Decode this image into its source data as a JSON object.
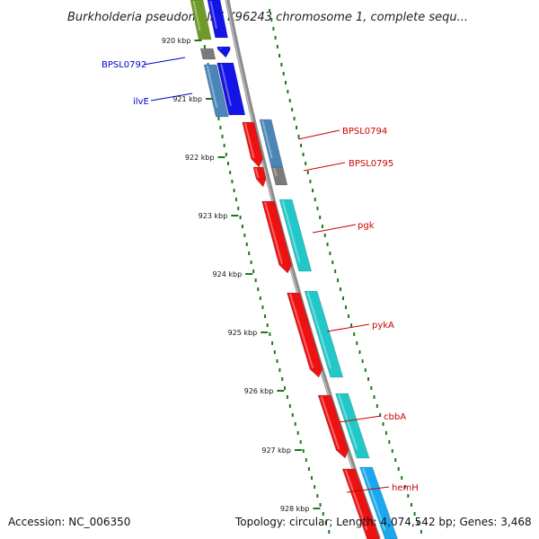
{
  "title": "Burkholderia pseudomallei K96243 chromosome 1, complete sequ...",
  "footer": {
    "accession": "Accession: NC_006350",
    "topology": "Topology: circular; Length: 4,074,542 bp; Genes: 3,468"
  },
  "colors": {
    "backbone": "#8c8c8c",
    "tick": "#1a7a1a",
    "label_blue": "#0000cc",
    "label_red": "#cc0000",
    "forward_red": "#ee1111",
    "reverse_cyan": "#22c8c8",
    "blue_gene": "#1414e6",
    "olive": "#6f9a2a",
    "steel": "#4a86b8",
    "gray_gene": "#7a7a7a",
    "sky": "#1aa8ee"
  },
  "ticks": [
    {
      "label": "920 kbp"
    },
    {
      "label": "921 kbp"
    },
    {
      "label": "922 kbp"
    },
    {
      "label": "923 kbp"
    },
    {
      "label": "924 kbp"
    },
    {
      "label": "925 kbp"
    },
    {
      "label": "926 kbp"
    },
    {
      "label": "927 kbp"
    },
    {
      "label": "928 kbp"
    }
  ],
  "gene_labels": [
    {
      "name": "BPSL0792",
      "color": "#0000cc"
    },
    {
      "name": "ilvE",
      "color": "#0000cc"
    },
    {
      "name": "BPSL0794",
      "color": "#cc0000"
    },
    {
      "name": "BPSL0795",
      "color": "#cc0000"
    },
    {
      "name": "pgk",
      "color": "#cc0000"
    },
    {
      "name": "pykA",
      "color": "#cc0000"
    },
    {
      "name": "cbbA",
      "color": "#cc0000"
    },
    {
      "name": "hemH",
      "color": "#cc0000"
    }
  ]
}
